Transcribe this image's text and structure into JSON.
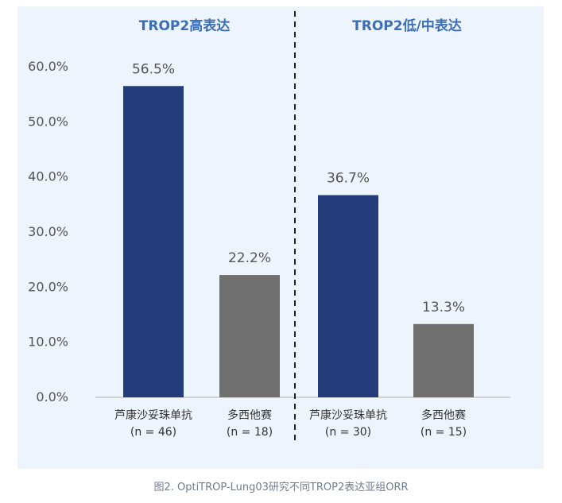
{
  "figure": {
    "caption": "图2. OptiTROP-Lung03研究不同TROP2表达亚组ORR"
  },
  "chart_data": {
    "type": "bar",
    "ylim": [
      0,
      60
    ],
    "yticks": [
      "0.0%",
      "10.0%",
      "20.0%",
      "30.0%",
      "40.0%",
      "50.0%",
      "60.0%"
    ],
    "ytick_values": [
      0,
      10,
      20,
      30,
      40,
      50,
      60
    ],
    "groups": [
      {
        "title": "TROP2高表达",
        "bars": [
          {
            "label": "芦康沙妥珠单抗",
            "n": "(n = 46)",
            "value": 56.5,
            "value_label": "56.5%",
            "color": "#243d7a"
          },
          {
            "label": "多西他赛",
            "n": "(n = 18)",
            "value": 22.2,
            "value_label": "22.2%",
            "color": "#707070"
          }
        ]
      },
      {
        "title": "TROP2低/中表达",
        "bars": [
          {
            "label": "芦康沙妥珠单抗",
            "n": "(n = 30)",
            "value": 36.7,
            "value_label": "36.7%",
            "color": "#243d7a"
          },
          {
            "label": "多西他赛",
            "n": "(n = 15)",
            "value": 13.3,
            "value_label": "13.3%",
            "color": "#707070"
          }
        ]
      }
    ]
  }
}
